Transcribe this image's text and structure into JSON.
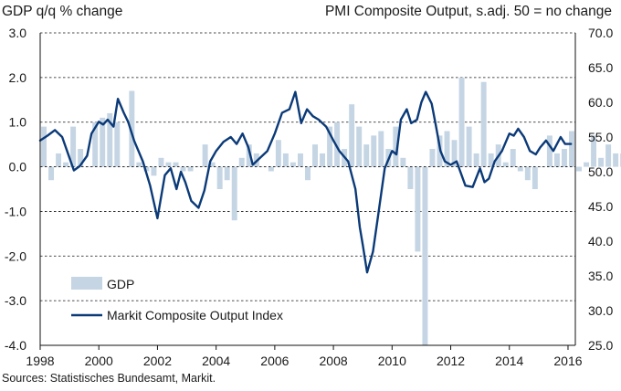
{
  "header": {
    "left_title": "GDP q/q % change",
    "right_title": "PMI Composite  Output, s.adj. 50 = no change"
  },
  "source": "Sources: Statistisches Bundesamt, Markit.",
  "colors": {
    "gdp_bars": "#c5d5e4",
    "pmi_line": "#0b3a78",
    "grid": "#111111"
  },
  "chart_data": {
    "type": "bar",
    "x_start": "1998 Q1",
    "xlabel": "",
    "x_ticks": [
      "1998",
      "2000",
      "2002",
      "2004",
      "2006",
      "2008",
      "2010",
      "2012",
      "2014",
      "2016"
    ],
    "y_left": {
      "label": "GDP q/q % change",
      "lim": [
        -4.0,
        3.0
      ],
      "ticks": [
        "3.0",
        "2.0",
        "1.0",
        "0.0",
        "-1.0",
        "-2.0",
        "-3.0",
        "-4.0"
      ]
    },
    "y_right": {
      "label": "PMI Composite  Output, s.adj. 50 = no change",
      "lim": [
        25.0,
        70.0
      ],
      "ticks": [
        "70.0",
        "65.0",
        "60.0",
        "55.0",
        "50.0",
        "45.0",
        "40.0",
        "35.0",
        "30.0",
        "25.0"
      ]
    },
    "grid": "horizontal dashed",
    "legend": {
      "placement": "bottom-left",
      "items": [
        "GDP",
        "Markit Composite Output Index"
      ]
    },
    "series": [
      {
        "name": "GDP",
        "type": "bar",
        "axis": "left",
        "values": [
          0.9,
          -0.3,
          0.3,
          0.1,
          0.9,
          0.4,
          0.0,
          1.0,
          1.1,
          1.2,
          1.0,
          0.0,
          1.7,
          0.1,
          -0.1,
          -0.2,
          0.2,
          0.1,
          0.1,
          -0.1,
          -0.1,
          0.0,
          0.5,
          0.1,
          -0.5,
          -0.3,
          -1.2,
          0.2,
          0.5,
          0.3,
          0.0,
          -0.1,
          0.6,
          0.3,
          0.1,
          0.3,
          -0.3,
          0.5,
          0.3,
          0.9,
          1.0,
          0.4,
          1.4,
          0.9,
          0.5,
          0.7,
          0.8,
          0.4,
          0.9,
          0.2,
          -0.5,
          -1.9,
          -4.0,
          0.4,
          0.7,
          0.8,
          0.6,
          2.0,
          0.9,
          0.3,
          1.9,
          0.3,
          0.5,
          0.1,
          0.4,
          -0.1,
          -0.3,
          -0.5,
          0.0,
          0.7,
          0.3,
          0.4,
          0.8,
          -0.1,
          0.1,
          0.7,
          0.2,
          0.5,
          0.3,
          0.3,
          0.3
        ]
      },
      {
        "name": "Markit Composite Output Index",
        "type": "line",
        "axis": "right",
        "points": [
          [
            1998.0,
            54.5
          ],
          [
            1998.25,
            55.2
          ],
          [
            1998.5,
            56.0
          ],
          [
            1998.75,
            55.0
          ],
          [
            1999.0,
            52.0
          ],
          [
            1999.15,
            50.2
          ],
          [
            1999.35,
            50.8
          ],
          [
            1999.6,
            52.3
          ],
          [
            1999.75,
            55.5
          ],
          [
            2000.0,
            57.2
          ],
          [
            2000.15,
            56.8
          ],
          [
            2000.3,
            57.5
          ],
          [
            2000.5,
            56.5
          ],
          [
            2000.65,
            60.5
          ],
          [
            2000.85,
            58.5
          ],
          [
            2001.0,
            57.2
          ],
          [
            2001.2,
            54.5
          ],
          [
            2001.5,
            51.5
          ],
          [
            2001.75,
            48.0
          ],
          [
            2002.0,
            43.3
          ],
          [
            2002.25,
            49.5
          ],
          [
            2002.45,
            50.5
          ],
          [
            2002.65,
            47.5
          ],
          [
            2002.8,
            50.0
          ],
          [
            2002.95,
            48.5
          ],
          [
            2003.15,
            45.8
          ],
          [
            2003.4,
            44.8
          ],
          [
            2003.6,
            47.3
          ],
          [
            2003.8,
            51.5
          ],
          [
            2004.0,
            53.0
          ],
          [
            2004.25,
            54.3
          ],
          [
            2004.5,
            55.0
          ],
          [
            2004.7,
            54.0
          ],
          [
            2004.9,
            55.5
          ],
          [
            2005.1,
            53.5
          ],
          [
            2005.25,
            51.0
          ],
          [
            2005.5,
            52.0
          ],
          [
            2005.75,
            53.0
          ],
          [
            2006.0,
            55.5
          ],
          [
            2006.25,
            58.5
          ],
          [
            2006.5,
            59.0
          ],
          [
            2006.7,
            61.5
          ],
          [
            2006.9,
            57.0
          ],
          [
            2007.1,
            59.0
          ],
          [
            2007.3,
            58.0
          ],
          [
            2007.5,
            57.5
          ],
          [
            2007.75,
            56.5
          ],
          [
            2008.0,
            54.5
          ],
          [
            2008.2,
            53.0
          ],
          [
            2008.5,
            51.5
          ],
          [
            2008.75,
            47.5
          ],
          [
            2008.9,
            42.0
          ],
          [
            2009.0,
            39.5
          ],
          [
            2009.15,
            35.5
          ],
          [
            2009.35,
            38.5
          ],
          [
            2009.5,
            43.0
          ],
          [
            2009.75,
            50.5
          ],
          [
            2010.0,
            53.0
          ],
          [
            2010.15,
            52.5
          ],
          [
            2010.3,
            57.5
          ],
          [
            2010.5,
            59.0
          ],
          [
            2010.65,
            57.0
          ],
          [
            2010.85,
            57.5
          ],
          [
            2011.0,
            60.0
          ],
          [
            2011.15,
            61.5
          ],
          [
            2011.35,
            59.8
          ],
          [
            2011.5,
            56.5
          ],
          [
            2011.65,
            53.0
          ],
          [
            2011.8,
            51.5
          ],
          [
            2012.0,
            51.0
          ],
          [
            2012.2,
            51.5
          ],
          [
            2012.5,
            48.0
          ],
          [
            2012.75,
            47.8
          ],
          [
            2013.0,
            50.5
          ],
          [
            2013.15,
            48.5
          ],
          [
            2013.3,
            49.0
          ],
          [
            2013.5,
            51.5
          ],
          [
            2013.75,
            53.0
          ],
          [
            2014.0,
            55.5
          ],
          [
            2014.15,
            55.2
          ],
          [
            2014.3,
            56.2
          ],
          [
            2014.5,
            55.0
          ],
          [
            2014.7,
            53.0
          ],
          [
            2014.9,
            52.5
          ],
          [
            2015.05,
            53.5
          ],
          [
            2015.25,
            54.5
          ],
          [
            2015.5,
            53.0
          ],
          [
            2015.75,
            55.0
          ],
          [
            2015.9,
            54.0
          ],
          [
            2016.1,
            54.0
          ]
        ]
      }
    ]
  }
}
